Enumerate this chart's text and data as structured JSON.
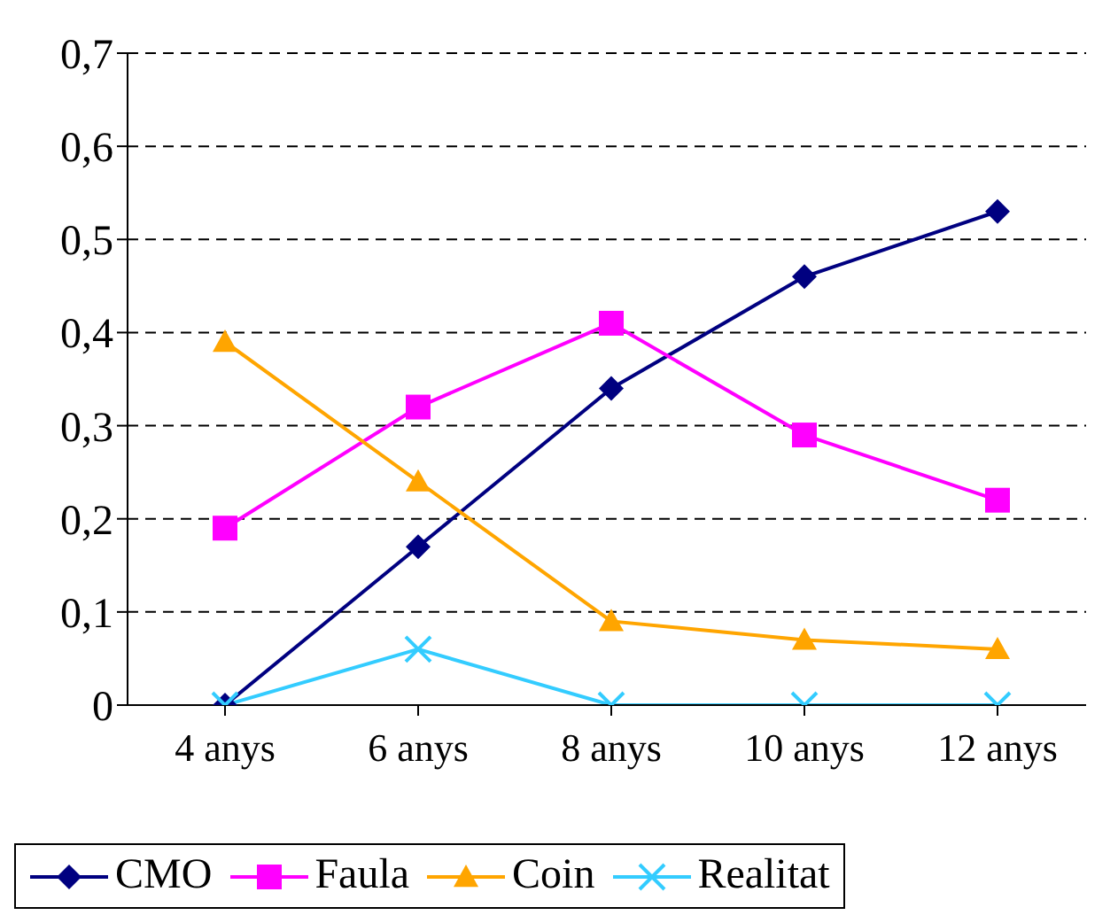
{
  "chart_data": {
    "type": "line",
    "categories": [
      "4 anys",
      "6 anys",
      "8 anys",
      "10 anys",
      "12 anys"
    ],
    "series": [
      {
        "name": "CMO",
        "color": "#000080",
        "marker": "diamond",
        "values": [
          0,
          0.17,
          0.34,
          0.46,
          0.53
        ]
      },
      {
        "name": "Faula",
        "color": "#ff00ff",
        "marker": "square",
        "values": [
          0.19,
          0.32,
          0.41,
          0.29,
          0.22
        ]
      },
      {
        "name": "Coin",
        "color": "#ffa500",
        "marker": "triangle",
        "values": [
          0.39,
          0.24,
          0.09,
          0.07,
          0.06
        ]
      },
      {
        "name": "Realitat",
        "color": "#33ccff",
        "marker": "cross",
        "values": [
          0,
          0.06,
          0,
          0,
          0
        ]
      }
    ],
    "ylim": [
      0,
      0.7
    ],
    "yticks": [
      {
        "value": 0,
        "label": "0"
      },
      {
        "value": 0.1,
        "label": "0,1"
      },
      {
        "value": 0.2,
        "label": "0,2"
      },
      {
        "value": 0.3,
        "label": "0,3"
      },
      {
        "value": 0.4,
        "label": "0,4"
      },
      {
        "value": 0.5,
        "label": "0,5"
      },
      {
        "value": 0.6,
        "label": "0,6"
      },
      {
        "value": 0.7,
        "label": "0,7"
      }
    ],
    "grid": "y",
    "legend": "bottom",
    "line_style": "solid"
  }
}
